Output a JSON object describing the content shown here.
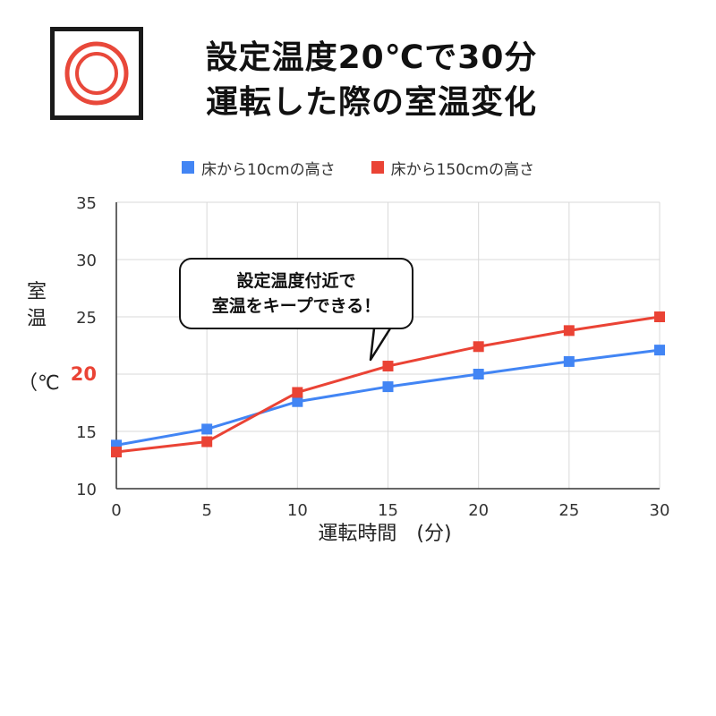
{
  "header": {
    "title_line1": "設定温度20℃で30分",
    "title_line2": "運転した際の室温変化",
    "icon": "heater-rings-icon"
  },
  "annotation": {
    "line1": "設定温度付近で",
    "line2": "室温をキープできる！"
  },
  "y_axis_title": {
    "char1": "室",
    "char2": "温",
    "unit": "（℃"
  },
  "x_axis_title": "運転時間　(分)",
  "colors": {
    "blue_series": "#4285f4",
    "red_series": "#ea4335",
    "highlight_tick": "#ea4335",
    "grid": "#d9d9d9",
    "icon_ring": "#e8483a"
  },
  "chart_data": {
    "type": "line",
    "x": [
      0,
      5,
      10,
      15,
      20,
      25,
      30
    ],
    "xlabel": "運転時間　(分)",
    "ylabel": "室温（℃",
    "ylim": [
      10,
      35
    ],
    "xlim": [
      0,
      30
    ],
    "y_ticks": [
      10,
      15,
      20,
      25,
      30,
      35
    ],
    "x_ticks": [
      0,
      5,
      10,
      15,
      20,
      25,
      30
    ],
    "highlighted_y_tick": 20,
    "grid": true,
    "legend_position": "top-center",
    "series": [
      {
        "name": "床から10cmの高さ",
        "color": "#4285f4",
        "values": [
          13.8,
          15.2,
          17.6,
          18.9,
          20.0,
          21.1,
          22.1
        ]
      },
      {
        "name": "床から150cmの高さ",
        "color": "#ea4335",
        "values": [
          13.2,
          14.1,
          18.4,
          20.7,
          22.4,
          23.8,
          25.0
        ]
      }
    ]
  }
}
